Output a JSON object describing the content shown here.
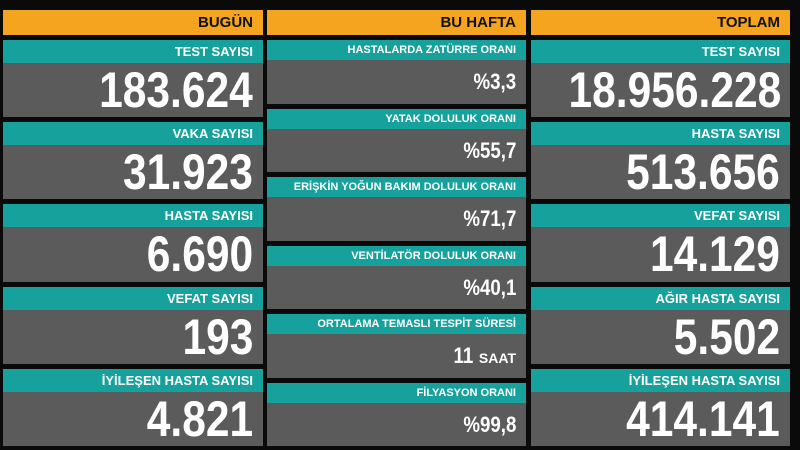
{
  "columns": [
    {
      "title": "BUGÜN",
      "items": [
        {
          "label": "TEST SAYISI",
          "value": "183.624"
        },
        {
          "label": "VAKA SAYISI",
          "value": "31.923"
        },
        {
          "label": "HASTA SAYISI",
          "value": "6.690"
        },
        {
          "label": "VEFAT SAYISI",
          "value": "193"
        },
        {
          "label": "İYİLEŞEN HASTA SAYISI",
          "value": "4.821"
        }
      ]
    },
    {
      "title": "BU HAFTA",
      "items": [
        {
          "label": "HASTALARDA ZATÜRRE ORANI",
          "value": "%3,3"
        },
        {
          "label": "YATAK DOLULUK ORANI",
          "value": "%55,7"
        },
        {
          "label": "ERİŞKİN YOĞUN BAKIM DOLULUK ORANI",
          "value": "%71,7"
        },
        {
          "label": "VENTİLATÖR DOLULUK ORANI",
          "value": "%40,1"
        },
        {
          "label": "ORTALAMA TEMASLI TESPİT SÜRESİ",
          "value": "11",
          "unit": "SAAT"
        },
        {
          "label": "FİLYASYON ORANI",
          "value": "%99,8"
        }
      ]
    },
    {
      "title": "TOPLAM",
      "items": [
        {
          "label": "TEST SAYISI",
          "value": "18.956.228"
        },
        {
          "label": "HASTA SAYISI",
          "value": "513.656"
        },
        {
          "label": "VEFAT SAYISI",
          "value": "14.129"
        },
        {
          "label": "AĞIR HASTA SAYISI",
          "value": "5.502"
        },
        {
          "label": "İYİLEŞEN HASTA SAYISI",
          "value": "414.141"
        }
      ]
    }
  ]
}
